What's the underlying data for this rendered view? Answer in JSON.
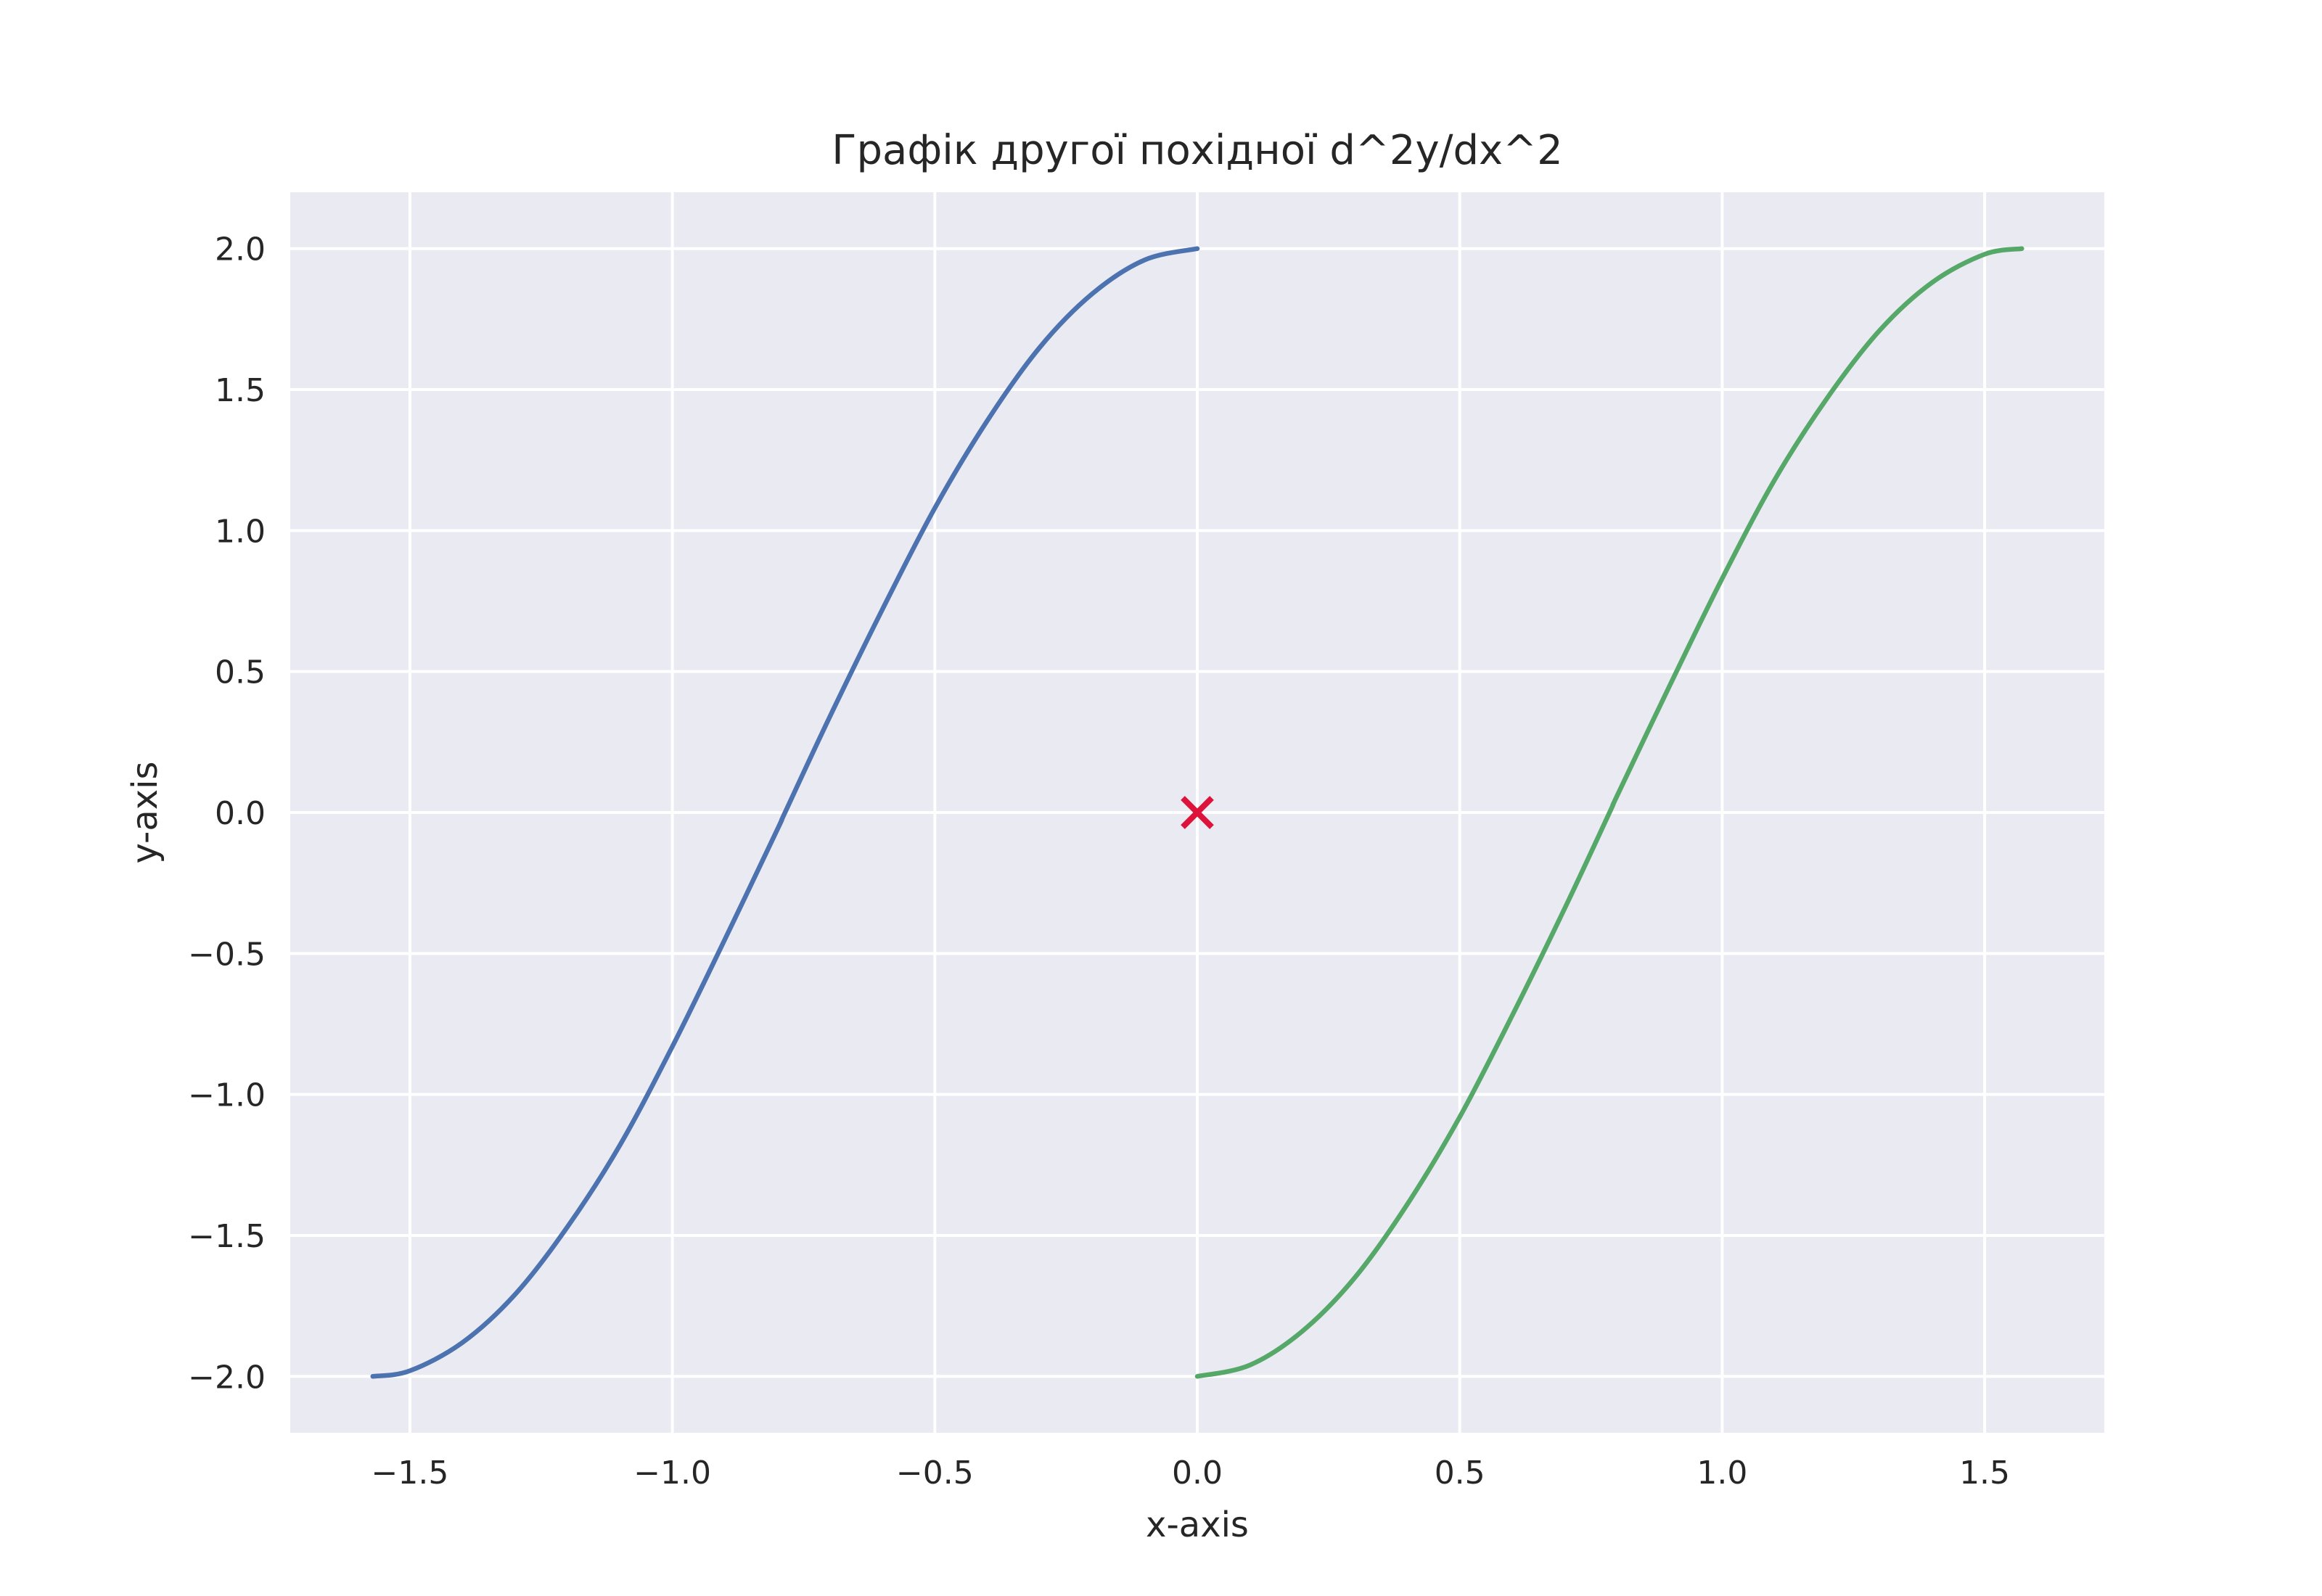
{
  "chart_data": {
    "type": "line",
    "title": "Графік другої похідної d^2y/dx^2",
    "xlabel": "x-axis",
    "ylabel": "y-axis",
    "xlim": [
      -1.728,
      1.728
    ],
    "ylim": [
      -2.2,
      2.2
    ],
    "grid": true,
    "x_ticks": [
      {
        "value": -1.5,
        "label": "−1.5"
      },
      {
        "value": -1.0,
        "label": "−1.0"
      },
      {
        "value": -0.5,
        "label": "−0.5"
      },
      {
        "value": 0.0,
        "label": "0.0"
      },
      {
        "value": 0.5,
        "label": "0.5"
      },
      {
        "value": 1.0,
        "label": "1.0"
      },
      {
        "value": 1.5,
        "label": "1.5"
      }
    ],
    "y_ticks": [
      {
        "value": 2.0,
        "label": "2.0"
      },
      {
        "value": 1.5,
        "label": "1.5"
      },
      {
        "value": 1.0,
        "label": "1.0"
      },
      {
        "value": 0.5,
        "label": "0.5"
      },
      {
        "value": 0.0,
        "label": "0.0"
      },
      {
        "value": -0.5,
        "label": "−0.5"
      },
      {
        "value": -1.0,
        "label": "−1.0"
      },
      {
        "value": -1.5,
        "label": "−1.5"
      },
      {
        "value": -2.0,
        "label": "−2.0"
      }
    ],
    "series": [
      {
        "color": "#4c72b0",
        "x": [
          -1.5708,
          -1.5,
          -1.4,
          -1.3,
          -1.2,
          -1.1,
          -1.0,
          -0.9,
          -0.8,
          -0.7854,
          -0.7,
          -0.6,
          -0.5,
          -0.4,
          -0.3,
          -0.2,
          -0.1,
          0.0
        ],
        "y": [
          -2.0,
          -1.98,
          -1.88,
          -1.71,
          -1.47,
          -1.18,
          -0.83,
          -0.45,
          -0.06,
          0.0,
          0.34,
          0.72,
          1.08,
          1.39,
          1.65,
          1.84,
          1.96,
          2.0
        ]
      },
      {
        "color": "#55a868",
        "x": [
          0.0,
          0.1,
          0.2,
          0.3,
          0.4,
          0.5,
          0.6,
          0.7,
          0.7854,
          0.8,
          0.9,
          1.0,
          1.1,
          1.2,
          1.3,
          1.4,
          1.5,
          1.5708
        ],
        "y": [
          -2.0,
          -1.96,
          -1.84,
          -1.65,
          -1.39,
          -1.08,
          -0.72,
          -0.34,
          0.0,
          0.06,
          0.45,
          0.83,
          1.18,
          1.47,
          1.71,
          1.88,
          1.98,
          2.0
        ]
      }
    ],
    "markers": [
      {
        "x": 0.0,
        "y": 0.0,
        "shape": "x",
        "color": "#dc143c"
      }
    ]
  }
}
